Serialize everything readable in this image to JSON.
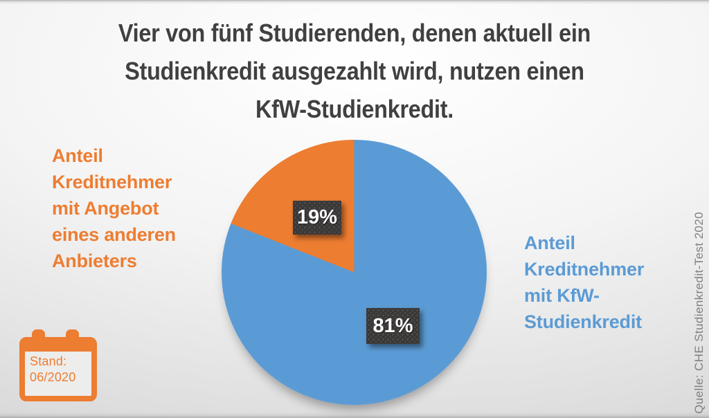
{
  "title": {
    "text": "Vier von fünf Studierenden, denen aktuell ein\nStudienkredit ausgezahlt wird, nutzen einen\nKfW-Studienkredit."
  },
  "chart_data": {
    "type": "pie",
    "title": "Vier von fünf Studierenden, denen aktuell ein Studienkredit ausgezahlt wird, nutzen einen KfW-Studienkredit.",
    "slices": [
      {
        "name": "Anteil Kreditnehmer mit KfW-Studienkredit",
        "value": 81,
        "display": "81%",
        "color": "#5B9BD5",
        "label_display": "Anteil\nKreditnehmer\nmit KfW-\nStudienkredit"
      },
      {
        "name": "Anteil Kreditnehmer mit Angebot eines anderen Anbieters",
        "value": 19,
        "display": "19%",
        "color": "#ED7D31",
        "label_display": "Anteil\nKreditnehmer\nmit Angebot\neines anderen\nAnbieters"
      }
    ],
    "start_angle_deg": 0,
    "direction": "clockwise",
    "legend_position": "side-labels",
    "source": "Quelle: CHE Studienkredit-Test 2020",
    "as_of": "Stand: 06/2020"
  },
  "calendar": {
    "text": "Stand:\n06/2020"
  },
  "source": {
    "text": "Quelle: CHE Studienkredit-Test 2020"
  },
  "colors": {
    "orange": "#ED7D31",
    "blue": "#5B9BD5",
    "label_box": "#3B3838",
    "title_text": "#404040",
    "source_text": "#7F7F7F"
  }
}
